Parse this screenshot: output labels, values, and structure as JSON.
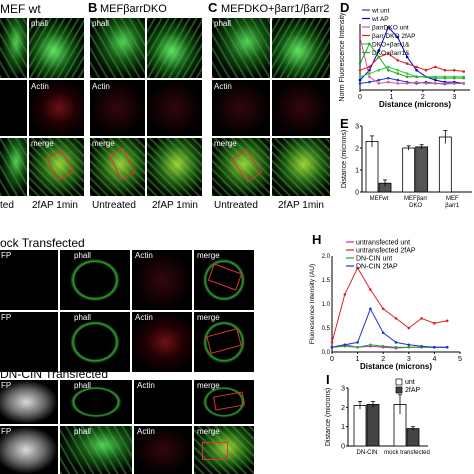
{
  "top": {
    "panel_A": "MEF wt",
    "panel_B": "B",
    "panel_B_title": "MEFβarrDKO",
    "panel_C": "C",
    "panel_C_title": "MEFDKO+βarr1/βarr2",
    "panel_D": "D",
    "panel_E": "E",
    "phall": "phall",
    "actin": "Actin",
    "merge": "merge",
    "cap_ted": "ted",
    "cap_2fap": "2fAP 1min",
    "cap_untreated": "Untreated",
    "cap_2fap_b": "2fAP 1min",
    "cap_untreated_c": "Untreated",
    "cap_2fap_c": "2fAP 1min"
  },
  "middle": {
    "section_title": "ock Transfected",
    "fp": "FP",
    "phall": "phall",
    "actin": "Actin",
    "merge": "merge",
    "panel_H": "H"
  },
  "bottom": {
    "section_title": "DN-CIN Transfected",
    "fp": "FP",
    "phall": "phall",
    "actin": "Actin",
    "merge": "merge",
    "panel_I": "I"
  },
  "chart_data": [
    {
      "type": "line",
      "panel": "D",
      "xlabel": "Distance (microns)",
      "ylabel": "Norm Fluorescence Intensity",
      "x_ticks": [
        "0",
        "1",
        "2",
        "3"
      ],
      "xlim": [
        0,
        3.5
      ],
      "series": [
        {
          "name": "wt unt",
          "color": "#1f3fbf",
          "x": [
            0,
            0.3,
            0.6,
            0.9,
            1.2,
            1.5,
            1.8,
            2.1,
            2.4,
            2.7,
            3.0,
            3.3
          ],
          "values": [
            0.1,
            0.12,
            0.15,
            0.18,
            0.15,
            0.12,
            0.1,
            0.12,
            0.1,
            0.09,
            0.1,
            0.1
          ]
        },
        {
          "name": "wt AP",
          "color": "#0000cc",
          "x": [
            0,
            0.3,
            0.6,
            0.9,
            1.2,
            1.5,
            1.8,
            2.1,
            2.4,
            2.7,
            3.0,
            3.3
          ],
          "values": [
            0.15,
            0.3,
            0.6,
            0.95,
            0.8,
            0.5,
            0.3,
            0.2,
            0.15,
            0.12,
            0.12,
            0.1
          ]
        },
        {
          "name": "βarrDKO unt",
          "color": "#e0559a",
          "x": [
            0,
            0.3,
            0.6,
            0.9,
            1.2,
            1.5,
            1.8,
            2.1,
            2.4,
            2.7,
            3.0,
            3.3
          ],
          "values": [
            0.8,
            0.2,
            0.1,
            0.12,
            0.1,
            0.1,
            0.12,
            0.1,
            0.1,
            0.1,
            0.1,
            0.1
          ]
        },
        {
          "name": "βarr DKO 2fAP",
          "color": "#dd2222",
          "x": [
            0,
            0.3,
            0.6,
            0.9,
            1.2,
            1.5,
            1.8,
            2.1,
            2.4,
            2.7,
            3.0,
            3.3
          ],
          "values": [
            0.3,
            0.35,
            0.5,
            0.55,
            0.45,
            0.4,
            0.35,
            0.3,
            0.35,
            0.3,
            0.3,
            0.28
          ]
        },
        {
          "name": "DKO+βarr1&",
          "color": "#33cc33",
          "x": [
            0,
            0.3,
            0.6,
            0.9,
            1.2,
            1.5,
            1.8,
            2.1,
            2.4,
            2.7,
            3.0,
            3.3
          ],
          "values": [
            0.2,
            0.25,
            0.3,
            0.35,
            0.3,
            0.25,
            0.2,
            0.2,
            0.2,
            0.2,
            0.2,
            0.2
          ]
        },
        {
          "name": "DKO+βarr1&",
          "color": "#22aa22",
          "x": [
            0,
            0.3,
            0.6,
            0.9,
            1.2,
            1.5,
            1.8,
            2.1,
            2.4,
            2.7,
            3.0,
            3.3
          ],
          "values": [
            0.4,
            0.7,
            0.5,
            0.3,
            0.25,
            0.2,
            0.2,
            0.2,
            0.18,
            0.18,
            0.18,
            0.18
          ]
        }
      ]
    },
    {
      "type": "bar",
      "panel": "E",
      "ylabel": "Distance (microns)",
      "ylim": [
        0,
        3
      ],
      "y_ticks": [
        "0",
        "1",
        "2",
        "3"
      ],
      "categories": [
        "MEFwt",
        "MEFβarr DKO",
        "MEF βarr1"
      ],
      "series": [
        {
          "name": "untreated",
          "color": "#ffffff",
          "values": [
            2.3,
            2.0,
            2.5
          ],
          "errors": [
            0.25,
            0.1,
            0.3
          ]
        },
        {
          "name": "2fAP",
          "color": "#555555",
          "values": [
            0.4,
            2.05,
            null
          ],
          "errors": [
            0.15,
            0.1,
            null
          ]
        }
      ]
    },
    {
      "type": "line",
      "panel": "H",
      "xlabel": "Distance (microns)",
      "ylabel": "Fluorescence Intensity (AU)",
      "ylim": [
        0,
        2
      ],
      "y_ticks": [
        "0.0",
        "0.5",
        "1.0",
        "1.5",
        "2.0"
      ],
      "x_ticks": [
        "0",
        "1",
        "2",
        "3",
        "4",
        "5"
      ],
      "xlim": [
        0,
        5
      ],
      "series": [
        {
          "name": "untransfected unt",
          "color": "#cc22cc",
          "x": [
            0,
            0.5,
            1,
            1.5,
            2,
            2.5,
            3,
            3.5,
            4,
            4.5
          ],
          "values": [
            0.1,
            0.15,
            0.1,
            0.12,
            0.1,
            0.08,
            0.1,
            0.1,
            0.1,
            0.1
          ]
        },
        {
          "name": "untransfected 2fAP",
          "color": "#dd2222",
          "x": [
            0,
            0.5,
            1,
            1.5,
            2,
            2.5,
            3,
            3.5,
            4,
            4.5
          ],
          "values": [
            0.2,
            1.2,
            1.75,
            1.3,
            0.9,
            0.7,
            0.5,
            0.7,
            0.6,
            0.65
          ]
        },
        {
          "name": "DN-CIN unt",
          "color": "#22aa22",
          "x": [
            0,
            0.5,
            1,
            1.5,
            2,
            2.5,
            3,
            3.5,
            4,
            4.5
          ],
          "values": [
            0.1,
            0.12,
            0.1,
            0.15,
            0.12,
            0.1,
            0.1,
            0.1,
            0.1,
            0.1
          ]
        },
        {
          "name": "DN-CIN 2fAP",
          "color": "#2233cc",
          "x": [
            0,
            0.5,
            1,
            1.5,
            2,
            2.5,
            3,
            3.5,
            4,
            4.5
          ],
          "values": [
            0.1,
            0.15,
            0.2,
            0.9,
            0.4,
            0.2,
            0.15,
            0.12,
            0.1,
            0.1
          ]
        }
      ]
    },
    {
      "type": "bar",
      "panel": "I",
      "ylabel": "Distance (microns)",
      "ylim": [
        0,
        3
      ],
      "y_ticks": [
        "0",
        "1",
        "2",
        "3"
      ],
      "categories": [
        "DN-CIN",
        "mock transfected"
      ],
      "series": [
        {
          "name": "unt",
          "color": "#ffffff",
          "values": [
            2.1,
            2.15
          ],
          "errors": [
            0.2,
            0.5
          ]
        },
        {
          "name": "2fAP",
          "color": "#444444",
          "values": [
            2.15,
            0.9
          ],
          "errors": [
            0.15,
            0.1
          ]
        }
      ]
    }
  ]
}
